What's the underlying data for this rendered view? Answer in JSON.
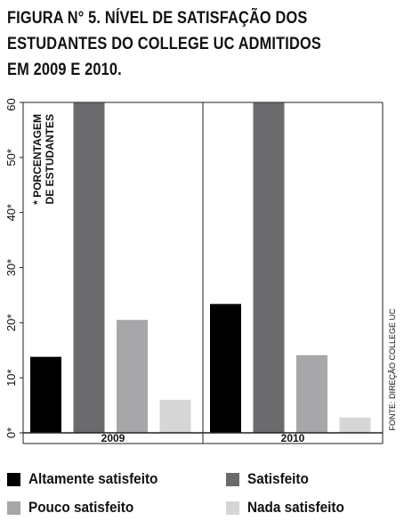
{
  "title_lines": [
    "FIGURA N° 5. NÍVEL DE SATISFAÇÃO DOS",
    "ESTUDANTES DO COLLEGE UC ADMITIDOS",
    "EM 2009 E 2010."
  ],
  "chart_data": {
    "type": "bar",
    "categories": [
      "2009",
      "2010"
    ],
    "series": [
      {
        "name": "Altamente satisfeito",
        "values": [
          13.8,
          23.4
        ],
        "color": "#000000"
      },
      {
        "name": "Satisfeito",
        "values": [
          60.5,
          60.5
        ],
        "color": "#6b6b6d"
      },
      {
        "name": "Pouco satisfeito",
        "values": [
          20.5,
          14.1
        ],
        "color": "#a7a7a9"
      },
      {
        "name": "Nada satisfeito",
        "values": [
          6.0,
          2.8
        ],
        "color": "#d6d6d6"
      }
    ],
    "ylim": [
      0,
      60
    ],
    "y_ticks": [
      "0*",
      "10*",
      "20*",
      "30*",
      "40*",
      "50*",
      "60*"
    ],
    "ylabel_lines": [
      "* PORCENTAGEM",
      "DE ESTUDANTES"
    ],
    "source": "FONTE: DIREÇÃO COLLEGE UC",
    "grid": false,
    "legend_position": "bottom"
  }
}
